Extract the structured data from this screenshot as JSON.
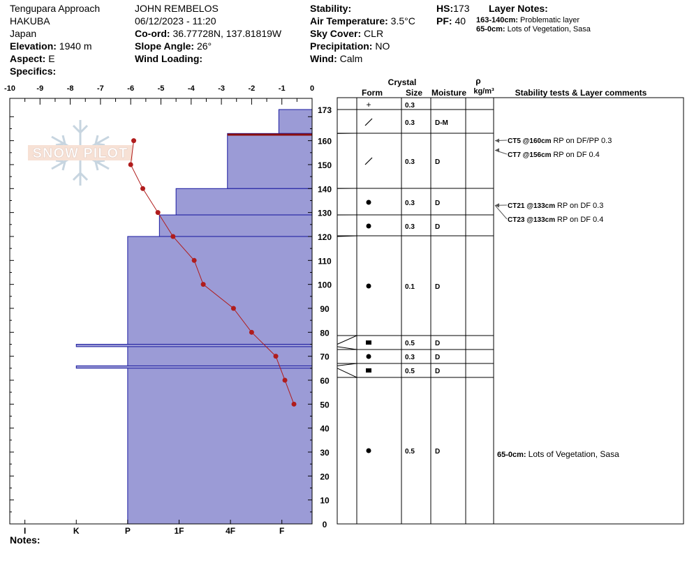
{
  "header": {
    "location": "Tengupara Approach",
    "area": "HAKUBA",
    "country": "Japan",
    "elevation_label": "Elevation:",
    "elevation_value": "1940 m",
    "aspect_label": "Aspect:",
    "aspect_value": "E",
    "specifics_label": "Specifics:",
    "observer": "JOHN REMBELOS",
    "datetime": "06/12/2023 - 11:20",
    "coord_label": "Co-ord:",
    "coord_value": "36.77728N, 137.81819W",
    "slope_label": "Slope Angle:",
    "slope_value": "26°",
    "wind_loading_label": "Wind Loading:",
    "stability_label": "Stability:",
    "air_temp_label": "Air Temperature:",
    "air_temp_value": "3.5°C",
    "sky_label": "Sky Cover:",
    "sky_value": "CLR",
    "precip_label": "Precipitation:",
    "precip_value": "NO",
    "wind_label": "Wind:",
    "wind_value": "Calm",
    "hs_label": "HS:",
    "hs_value": "173",
    "pf_label": "PF:",
    "pf_value": "40",
    "layer_notes_title": "Layer Notes:",
    "layer_notes": [
      {
        "range": "163-140cm:",
        "text": "Problematic layer"
      },
      {
        "range": "65-0cm:",
        "text": "Lots of Vegetation, Sasa"
      }
    ]
  },
  "logo_text": "SNOW PILOT",
  "notes_label": "Notes:",
  "table_headers": {
    "crystal": "Crystal",
    "form": "Form",
    "size": "Size",
    "moisture": "Moisture",
    "rho": "ρ",
    "density_unit": "kg/m³",
    "comments": "Stability tests & Layer comments"
  },
  "colors": {
    "hardness_fill": "#9b9bd6",
    "hardness_stroke": "#1a1aa0",
    "temp_line": "#b01c1c",
    "critical_layer": "#8b1010"
  },
  "chart_data": {
    "type": "snow_profile",
    "snow_height_cm": 173,
    "y_axis": {
      "range": [
        0,
        173
      ],
      "ticks": [
        0,
        10,
        20,
        30,
        40,
        50,
        60,
        70,
        80,
        90,
        100,
        110,
        120,
        130,
        140,
        150,
        160,
        173
      ]
    },
    "temperature_axis": {
      "range": [
        -10,
        0
      ],
      "ticks": [
        "-10",
        "-9",
        "-8",
        "-7",
        "-6",
        "-5",
        "-4",
        "-3",
        "-2",
        "-1",
        "0"
      ]
    },
    "hardness_axis": {
      "labels": [
        "I",
        "K",
        "P",
        "1F",
        "4F",
        "F"
      ],
      "values": [
        -9.5,
        -7.8,
        -6.1,
        -4.4,
        -2.7,
        -1.0
      ]
    },
    "hardness_layers": [
      {
        "top": 173,
        "bottom": 163,
        "temp_equiv": -1.1
      },
      {
        "top": 163,
        "bottom": 140,
        "temp_equiv": -2.8
      },
      {
        "top": 140,
        "bottom": 129,
        "temp_equiv": -4.5
      },
      {
        "top": 129,
        "bottom": 120,
        "temp_equiv": -5.05
      },
      {
        "top": 120,
        "bottom": 0,
        "temp_equiv": -6.1
      }
    ],
    "thin_layers": [
      {
        "top": 75,
        "bottom": 74,
        "temp_equiv": -7.8
      },
      {
        "top": 66,
        "bottom": 65,
        "temp_equiv": -7.8
      }
    ],
    "critical_layer_cm": 162.5,
    "temperature_profile": [
      {
        "depth": 160,
        "temp": -5.9
      },
      {
        "depth": 150,
        "temp": -6.0
      },
      {
        "depth": 140,
        "temp": -5.6
      },
      {
        "depth": 130,
        "temp": -5.1
      },
      {
        "depth": 120,
        "temp": -4.6
      },
      {
        "depth": 110,
        "temp": -3.9
      },
      {
        "depth": 100,
        "temp": -3.6
      },
      {
        "depth": 90,
        "temp": -2.6
      },
      {
        "depth": 80,
        "temp": -2.0
      },
      {
        "depth": 70,
        "temp": -1.2
      },
      {
        "depth": 60,
        "temp": -0.9
      },
      {
        "depth": 50,
        "temp": -0.6
      }
    ],
    "layers_table": [
      {
        "top": 173,
        "bottom": 163,
        "form": "+",
        "size": "0.3",
        "moisture": ""
      },
      {
        "top": 163,
        "bottom": 140,
        "form": "/",
        "size": "0.3",
        "moisture": "D-M"
      },
      {
        "top": 163,
        "bottom": 140,
        "form": "/",
        "size": "0.3",
        "moisture": "D"
      },
      {
        "top": 140,
        "bottom": 129,
        "form": "●",
        "size": "0.3",
        "moisture": "D"
      },
      {
        "top": 129,
        "bottom": 120,
        "form": "●",
        "size": "0.3",
        "moisture": "D"
      },
      {
        "top": 120,
        "bottom": 75,
        "form": "●",
        "size": "0.1",
        "moisture": "D"
      },
      {
        "top": 75,
        "bottom": 74,
        "form": "■",
        "size": "0.5",
        "moisture": "D"
      },
      {
        "top": 74,
        "bottom": 66,
        "form": "●",
        "size": "0.3",
        "moisture": "D"
      },
      {
        "top": 66,
        "bottom": 65,
        "form": "■",
        "size": "0.5",
        "moisture": "D"
      },
      {
        "top": 65,
        "bottom": 0,
        "form": "●",
        "size": "0.5",
        "moisture": "D"
      }
    ],
    "stability_tests": [
      {
        "depth": 160,
        "label": "CT5 @160cm",
        "result": "RP on DF/PP 0.3"
      },
      {
        "depth": 156,
        "label": "CT7 @156cm",
        "result": "RP on DF 0.4"
      },
      {
        "depth": 133,
        "label": "CT21 @133cm",
        "result": "RP on DF 0.3"
      },
      {
        "depth": 133,
        "label": "CT23 @133cm",
        "result": "RP on DF 0.4"
      }
    ],
    "layer_comments": [
      {
        "label": "65-0cm:",
        "text": "Lots of Vegetation, Sasa"
      }
    ]
  }
}
